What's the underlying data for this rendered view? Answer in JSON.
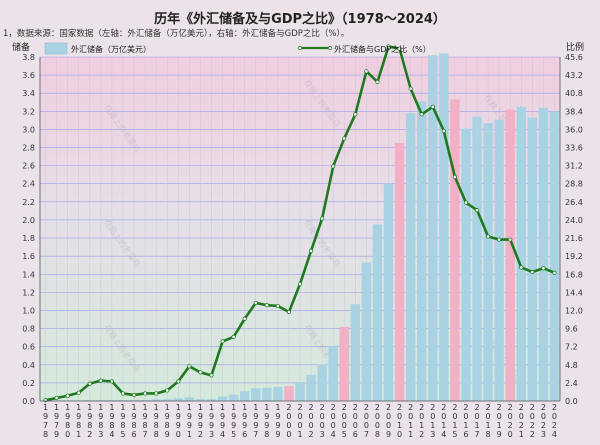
{
  "chart_data": {
    "type": "bar+line",
    "title": "历年《外汇储备及与GDP之比》（1978～2024）",
    "subtitle": "1，数据来源：国家数据（左轴：外汇储备（万亿美元），右轴：外汇储备与GDP之比（%）。",
    "y_left_label": "储备",
    "y_right_label": "比例",
    "legend": {
      "bar_label": "外汇储备（万亿美元）",
      "line_label": "外汇储备与GDP之比（%）"
    },
    "ylim_left": [
      0,
      3.8
    ],
    "yticks_left": [
      "0.0",
      "0.2",
      "0.4",
      "0.6",
      "0.8",
      "1.0",
      "1.2",
      "1.4",
      "1.6",
      "1.8",
      "2.0",
      "2.2",
      "2.4",
      "2.6",
      "2.8",
      "3.0",
      "3.2",
      "3.4",
      "3.6",
      "3.8"
    ],
    "ylim_right": [
      0,
      45.6
    ],
    "yticks_right": [
      "0.0",
      "2.4",
      "4.8",
      "7.2",
      "9.6",
      "12.0",
      "14.4",
      "16.8",
      "19.2",
      "21.6",
      "24.0",
      "26.4",
      "28.8",
      "31.2",
      "33.6",
      "36.0",
      "38.4",
      "40.8",
      "43.2",
      "45.6"
    ],
    "categories": [
      "1978",
      "1979",
      "1980",
      "1981",
      "1982",
      "1983",
      "1984",
      "1985",
      "1986",
      "1987",
      "1988",
      "1989",
      "1990",
      "1991",
      "1992",
      "1993",
      "1994",
      "1995",
      "1996",
      "1997",
      "1998",
      "1999",
      "2000",
      "2001",
      "2002",
      "2003",
      "2004",
      "2005",
      "2006",
      "2007",
      "2008",
      "2009",
      "2010",
      "2011",
      "2012",
      "2013",
      "2014",
      "2015",
      "2016",
      "2017",
      "2018",
      "2019",
      "2020",
      "2021",
      "2022",
      "2023",
      "2024"
    ],
    "reserves": [
      0.0,
      0.0,
      0.0,
      0.0,
      0.01,
      0.01,
      0.01,
      0.01,
      0.01,
      0.01,
      0.02,
      0.02,
      0.03,
      0.04,
      0.02,
      0.02,
      0.05,
      0.07,
      0.11,
      0.14,
      0.145,
      0.155,
      0.165,
      0.21,
      0.29,
      0.4,
      0.61,
      0.82,
      1.07,
      1.53,
      1.95,
      2.4,
      2.85,
      3.18,
      3.31,
      3.82,
      3.84,
      3.33,
      3.01,
      3.14,
      3.07,
      3.11,
      3.22,
      3.25,
      3.13,
      3.24,
      3.2
    ],
    "highlight_years": [
      "2000",
      "2005",
      "2010",
      "2015",
      "2020"
    ],
    "ratio": [
      0.1,
      0.4,
      0.7,
      1.1,
      2.3,
      2.7,
      2.6,
      1.0,
      0.8,
      1.0,
      1.0,
      1.4,
      2.6,
      4.6,
      3.8,
      3.4,
      7.9,
      8.5,
      10.9,
      13.0,
      12.7,
      12.6,
      11.8,
      15.5,
      19.9,
      24.2,
      31.1,
      34.8,
      38.0,
      43.7,
      42.3,
      47.0,
      46.7,
      41.4,
      38.0,
      39.0,
      35.8,
      29.7,
      26.3,
      25.3,
      21.8,
      21.4,
      21.4,
      17.7,
      17.1,
      17.6,
      17.0
    ]
  },
  "watermark": "在路上的老菜鸟"
}
